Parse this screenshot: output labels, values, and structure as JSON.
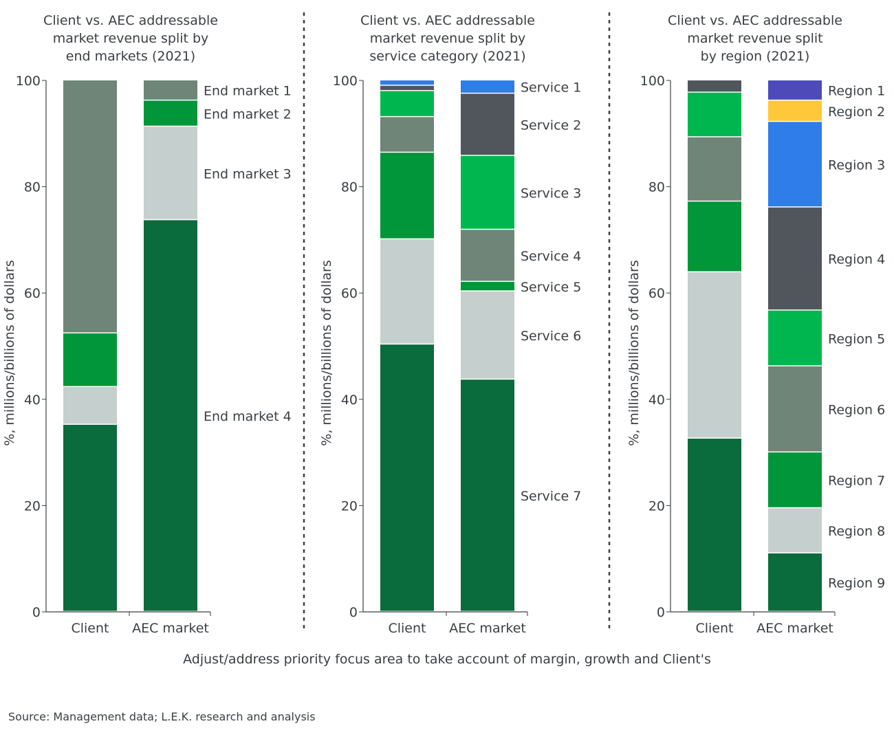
{
  "colors": {
    "dark_green": "#0a6b3c",
    "green": "#009639",
    "bright_green": "#00b74f",
    "gray_green": "#6e8578",
    "light_gray": "#c5cfcd",
    "slate": "#51565c",
    "blue": "#2e7de8",
    "yellow": "#ffc83a",
    "purple": "#4e4ab8"
  },
  "chart_data": [
    {
      "type": "bar",
      "stacked": true,
      "title": "Client vs. AEC addressable market revenue split by end markets (2021)",
      "title_lines": [
        "Client vs. AEC addressable",
        "market revenue split by",
        "end markets (2021)"
      ],
      "ylabel": "%, millions/billions of dollars",
      "ylim": [
        0,
        100
      ],
      "yticks": [
        0,
        20,
        40,
        60,
        80,
        100
      ],
      "categories": [
        "Client",
        "AEC market"
      ],
      "series": [
        {
          "name": "End market 4",
          "color": "dark_green",
          "values": [
            35.2,
            73.7
          ]
        },
        {
          "name": "End market 3",
          "color": "light_gray",
          "values": [
            7.1,
            17.6
          ]
        },
        {
          "name": "End market 2",
          "color": "green",
          "values": [
            10.1,
            4.9
          ]
        },
        {
          "name": "End market 1",
          "color": "gray_green",
          "values": [
            47.6,
            3.8
          ]
        }
      ]
    },
    {
      "type": "bar",
      "stacked": true,
      "title": "Client vs. AEC addressable market revenue split by service category (2021)",
      "title_lines": [
        "Client vs. AEC addressable",
        "market revenue split by",
        "service category (2021)"
      ],
      "ylabel": "%, millions/billions of dollars",
      "ylim": [
        0,
        100
      ],
      "yticks": [
        0,
        20,
        40,
        60,
        80,
        100
      ],
      "categories": [
        "Client",
        "AEC market"
      ],
      "series": [
        {
          "name": "Service 7",
          "color": "dark_green",
          "values": [
            50.3,
            43.7
          ]
        },
        {
          "name": "Service 6",
          "color": "light_gray",
          "values": [
            19.8,
            16.6
          ]
        },
        {
          "name": "Service 5",
          "color": "green",
          "values": [
            16.3,
            1.8
          ]
        },
        {
          "name": "Service 4",
          "color": "gray_green",
          "values": [
            6.7,
            9.8
          ]
        },
        {
          "name": "Service 3",
          "color": "bright_green",
          "values": [
            4.9,
            13.9
          ]
        },
        {
          "name": "Service 2",
          "color": "slate",
          "values": [
            1.0,
            11.7
          ]
        },
        {
          "name": "Service 1",
          "color": "blue",
          "values": [
            1.0,
            2.5
          ]
        }
      ]
    },
    {
      "type": "bar",
      "stacked": true,
      "title": "Client vs. AEC addressable market revenue split by region (2021)",
      "title_lines": [
        "Client vs. AEC addressable",
        "market revenue split",
        "by region (2021)"
      ],
      "ylabel": "%, millions/billions of dollars",
      "ylim": [
        0,
        100
      ],
      "yticks": [
        0,
        20,
        40,
        60,
        80,
        100
      ],
      "categories": [
        "Client",
        "AEC market"
      ],
      "series": [
        {
          "name": "Region 9",
          "color": "dark_green",
          "values": [
            32.6,
            11.0
          ]
        },
        {
          "name": "Region 8",
          "color": "light_gray",
          "values": [
            31.3,
            8.5
          ]
        },
        {
          "name": "Region 7",
          "color": "green",
          "values": [
            13.3,
            10.5
          ]
        },
        {
          "name": "Region 6",
          "color": "gray_green",
          "values": [
            12.1,
            16.2
          ]
        },
        {
          "name": "Region 5",
          "color": "bright_green",
          "values": [
            8.4,
            10.5
          ]
        },
        {
          "name": "Region 4",
          "color": "slate",
          "values": [
            2.3,
            19.4
          ]
        },
        {
          "name": "Region 3",
          "color": "blue",
          "values": [
            0,
            16.1
          ]
        },
        {
          "name": "Region 2",
          "color": "yellow",
          "values": [
            0,
            4.0
          ]
        },
        {
          "name": "Region 1",
          "color": "purple",
          "values": [
            0,
            3.8
          ]
        }
      ]
    }
  ],
  "footer": {
    "caption": "Adjust/address priority focus area to take account of margin, growth and Client's",
    "source": "Source: Management data; L.E.K. research and analysis"
  }
}
